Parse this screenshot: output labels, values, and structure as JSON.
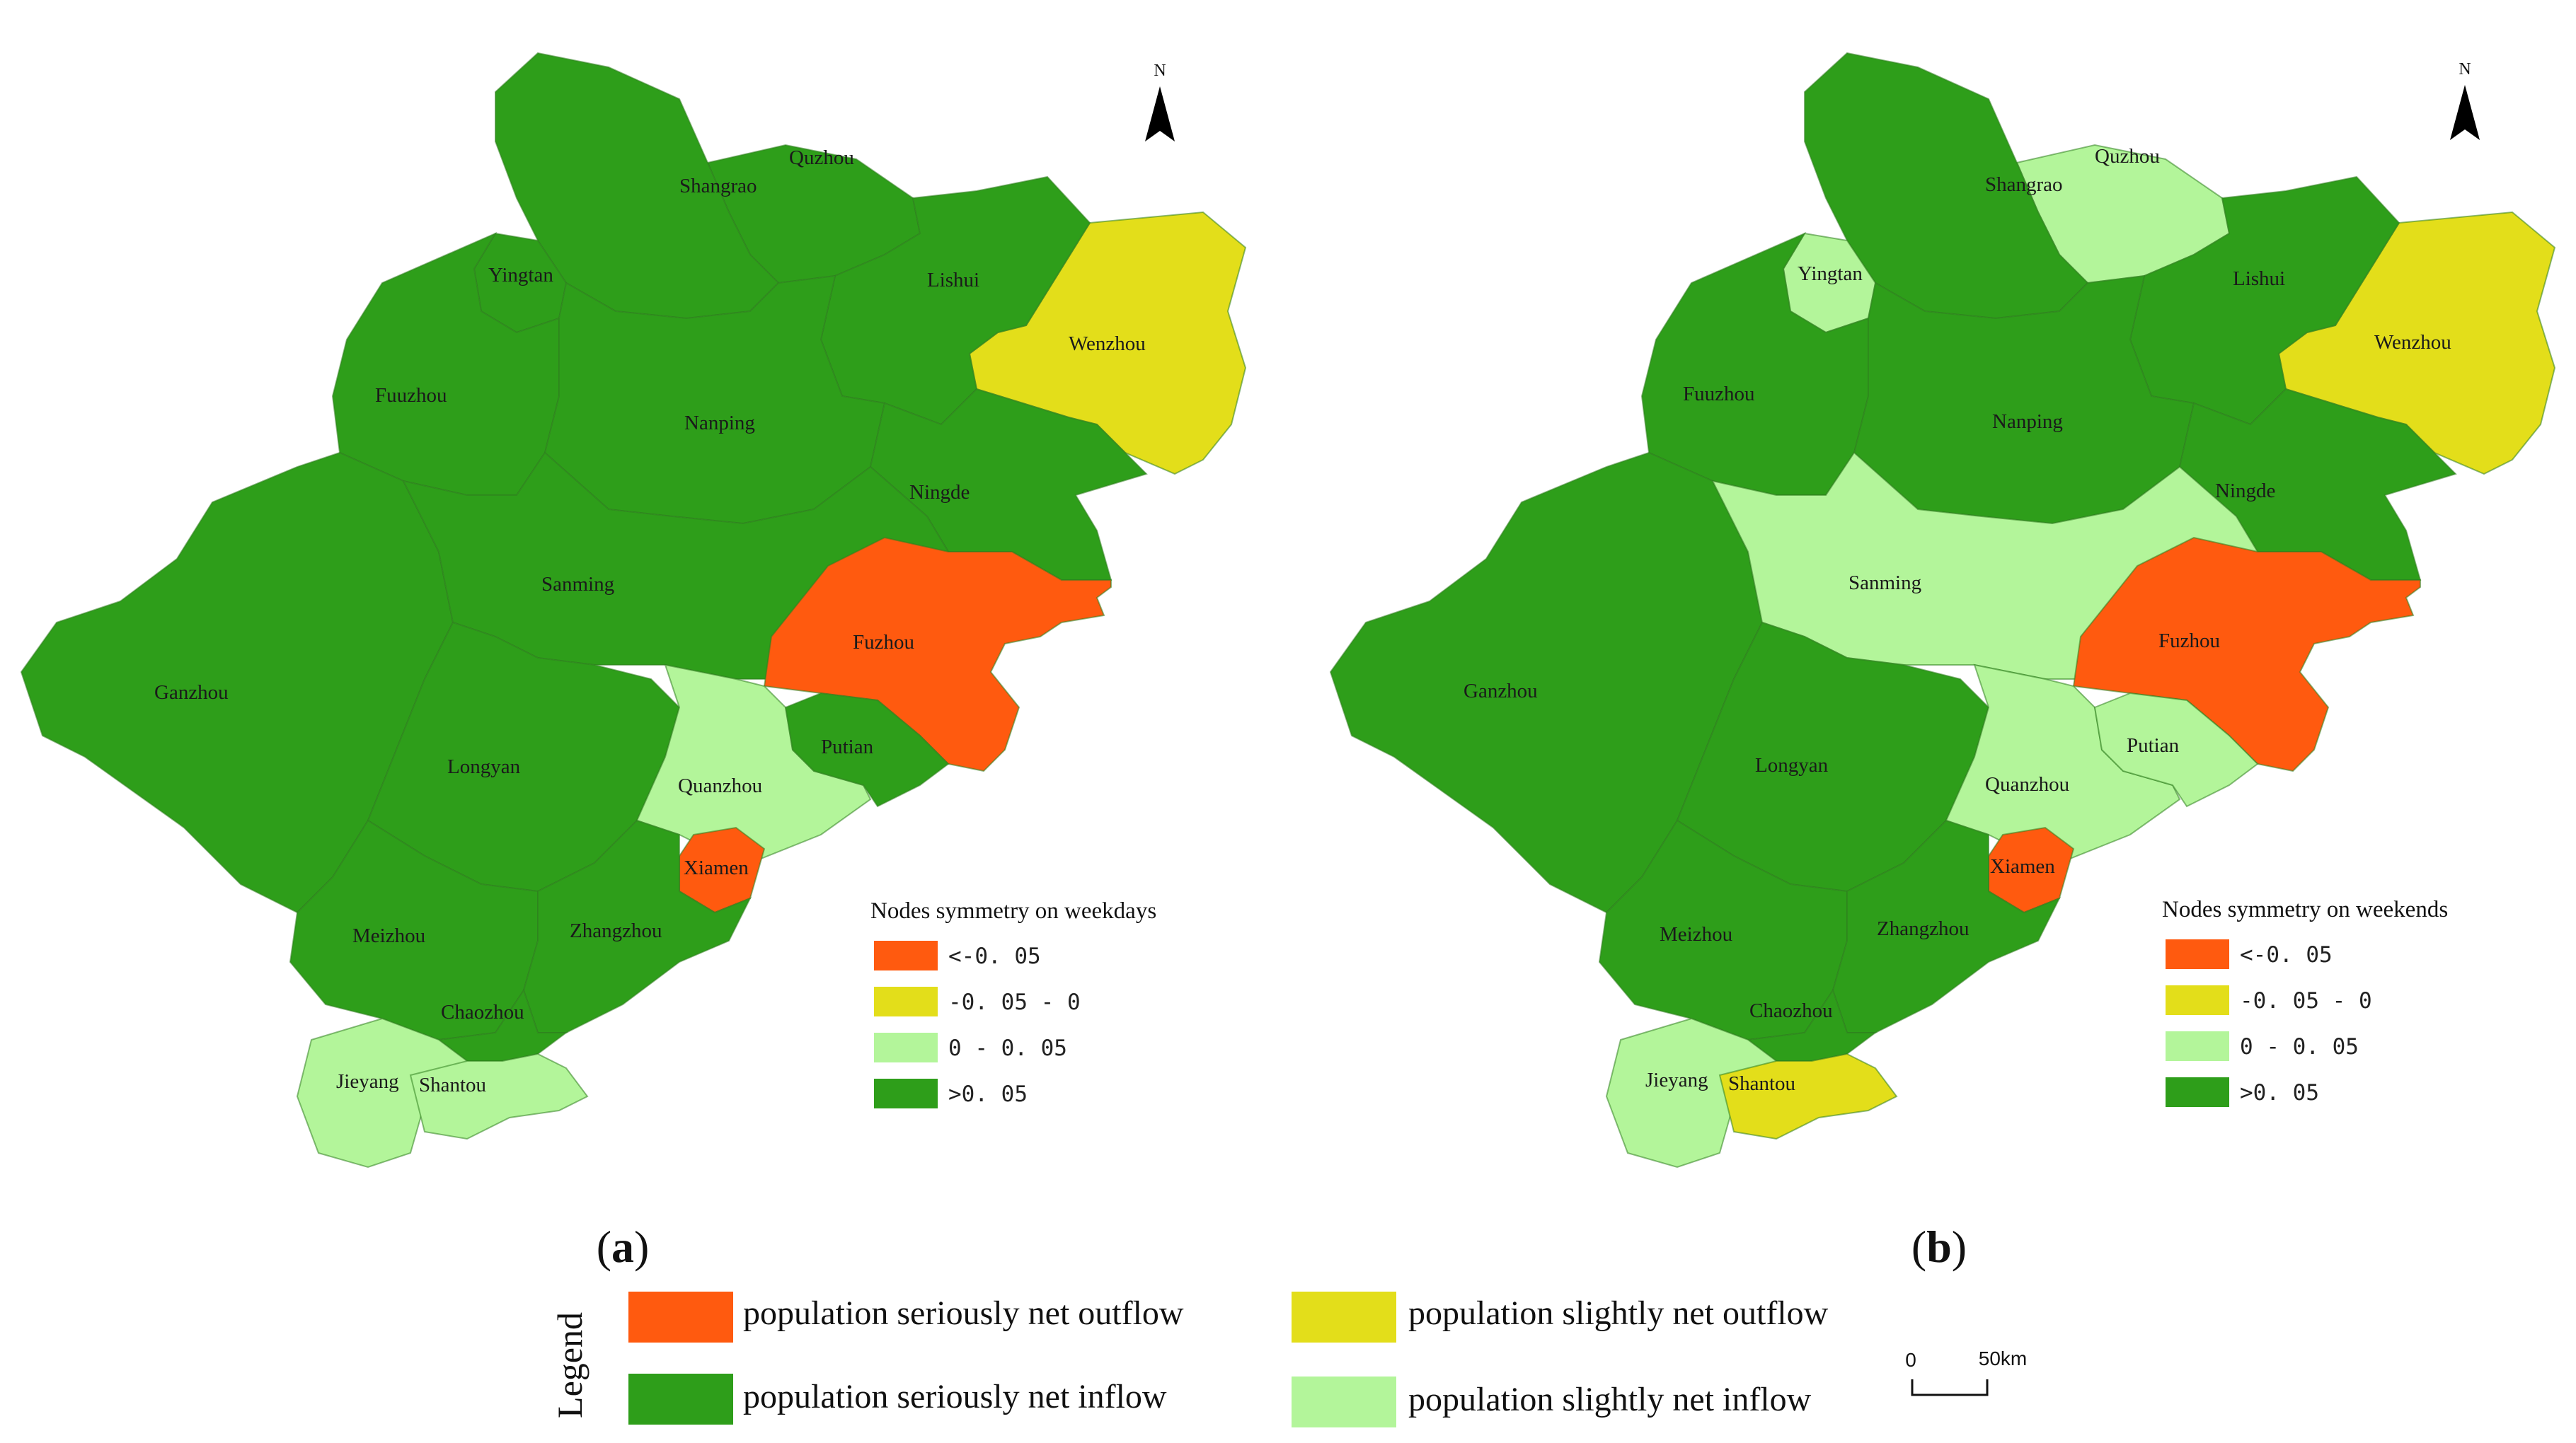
{
  "colors": {
    "lt_-0.05": "#ff5a0f",
    "-0.05_0": "#e3de1a",
    "0_0.05": "#b3f59a",
    "gt_0.05": "#2e9e1a",
    "boundary": "#2f7f1f"
  },
  "panels": [
    {
      "label_left": "(",
      "label_letter": "a",
      "label_right": ")",
      "north": "N",
      "legend_title": "Nodes symmetry on weekdays",
      "legend_items": [
        {
          "label": "<-0. 05",
          "color_key": "lt_-0.05"
        },
        {
          "label": "-0. 05 - 0",
          "color_key": "-0.05_0"
        },
        {
          "label": "0 - 0. 05",
          "color_key": "0_0.05"
        },
        {
          "label": ">0. 05",
          "color_key": "gt_0.05"
        }
      ],
      "regions": {
        "Shangrao": "gt_0.05",
        "Quzhou": "gt_0.05",
        "Yingtan": "gt_0.05",
        "Lishui": "gt_0.05",
        "Wenzhou": "-0.05_0",
        "Fuuzhou": "gt_0.05",
        "Nanping": "gt_0.05",
        "Ningde": "gt_0.05",
        "Sanming": "gt_0.05",
        "Fuzhou": "lt_-0.05",
        "Ganzhou": "gt_0.05",
        "Longyan": "gt_0.05",
        "Putian": "gt_0.05",
        "Quanzhou": "0_0.05",
        "Xiamen": "lt_-0.05",
        "Meizhou": "gt_0.05",
        "Zhangzhou": "gt_0.05",
        "Chaozhou": "gt_0.05",
        "Jieyang": "0_0.05",
        "Shantou": "0_0.05"
      }
    },
    {
      "label_left": "(",
      "label_letter": "b",
      "label_right": ")",
      "north": "N",
      "legend_title": "Nodes symmetry on weekends",
      "legend_items": [
        {
          "label": "<-0. 05",
          "color_key": "lt_-0.05"
        },
        {
          "label": "-0. 05 - 0",
          "color_key": "-0.05_0"
        },
        {
          "label": "0 - 0. 05",
          "color_key": "0_0.05"
        },
        {
          "label": ">0. 05",
          "color_key": "gt_0.05"
        }
      ],
      "regions": {
        "Shangrao": "gt_0.05",
        "Quzhou": "0_0.05",
        "Yingtan": "0_0.05",
        "Lishui": "gt_0.05",
        "Wenzhou": "-0.05_0",
        "Fuuzhou": "gt_0.05",
        "Nanping": "gt_0.05",
        "Ningde": "gt_0.05",
        "Sanming": "0_0.05",
        "Fuzhou": "lt_-0.05",
        "Ganzhou": "gt_0.05",
        "Longyan": "gt_0.05",
        "Putian": "0_0.05",
        "Quanzhou": "0_0.05",
        "Xiamen": "lt_-0.05",
        "Meizhou": "gt_0.05",
        "Zhangzhou": "gt_0.05",
        "Chaozhou": "gt_0.05",
        "Jieyang": "0_0.05",
        "Shantou": "-0.05_0"
      }
    }
  ],
  "city_names": {
    "Shangrao": "Shangrao",
    "Quzhou": "Quzhou",
    "Yingtan": "Yingtan",
    "Lishui": "Lishui",
    "Wenzhou": "Wenzhou",
    "Fuuzhou": "Fuuzhou",
    "Nanping": "Nanping",
    "Ningde": "Ningde",
    "Sanming": "Sanming",
    "Fuzhou": "Fuzhou",
    "Ganzhou": "Ganzhou",
    "Longyan": "Longyan",
    "Putian": "Putian",
    "Quanzhou": "Quanzhou",
    "Xiamen": "Xiamen",
    "Meizhou": "Meizhou",
    "Zhangzhou": "Zhangzhou",
    "Chaozhou": "Chaozhou",
    "Jieyang": "Jieyang",
    "Shantou": "Shantou"
  },
  "legend": {
    "title": "Legend",
    "items": [
      {
        "label": "population seriously net outflow",
        "color_key": "lt_-0.05"
      },
      {
        "label": "population slightly net outflow",
        "color_key": "-0.05_0"
      },
      {
        "label": "population seriously net inflow",
        "color_key": "gt_0.05"
      },
      {
        "label": "population slightly net inflow",
        "color_key": "0_0.05"
      }
    ]
  },
  "scale_bar": {
    "start": "0",
    "end": "50km"
  }
}
